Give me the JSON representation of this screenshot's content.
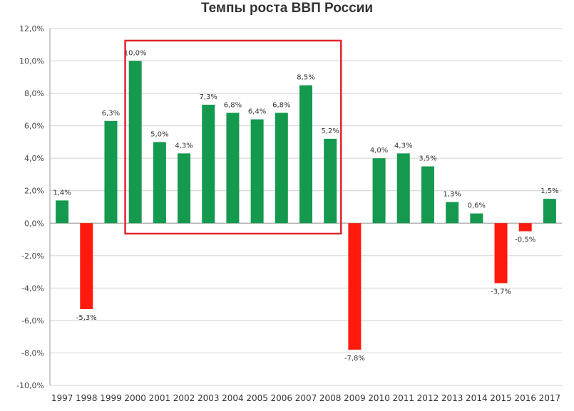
{
  "chart_data": {
    "type": "bar",
    "title": "Темпы роста ВВП России",
    "xlabel": "",
    "ylabel": "",
    "ylim": [
      -10,
      12
    ],
    "yticks": [
      "12,0%",
      "10,0%",
      "8,0%",
      "6,0%",
      "4,0%",
      "2,0%",
      "0,0%",
      "-2,0%",
      "-4,0%",
      "-6,0%",
      "-8,0%",
      "-10,0%"
    ],
    "grid": "horizontal",
    "legend": "none",
    "categories": [
      "1997",
      "1998",
      "1999",
      "2000",
      "2001",
      "2002",
      "2003",
      "2004",
      "2005",
      "2006",
      "2007",
      "2008",
      "2009",
      "2010",
      "2011",
      "2012",
      "2013",
      "2014",
      "2015",
      "2016",
      "2017"
    ],
    "values": [
      1.4,
      -5.3,
      6.3,
      10.0,
      5.0,
      4.3,
      7.3,
      6.8,
      6.4,
      6.8,
      8.5,
      5.2,
      -7.8,
      4.0,
      4.3,
      3.5,
      1.3,
      0.6,
      -3.7,
      -0.5,
      1.5
    ],
    "data_labels": [
      "1,4%",
      "-5,3%",
      "6,3%",
      "10,0%",
      "5,0%",
      "4,3%",
      "7,3%",
      "6,8%",
      "6,4%",
      "6,8%",
      "8,5%",
      "5,2%",
      "-7,8%",
      "4,0%",
      "4,3%",
      "3,5%",
      "1,3%",
      "0,6%",
      "-3,7%",
      "-0,5%",
      "1,5%"
    ],
    "colors": {
      "positive": "#14994f",
      "negative": "#ff1a0d",
      "highlight_box": "#e0252b",
      "grid": "#d0d0d0",
      "axis": "#999999"
    },
    "highlight_range": [
      "2000",
      "2008"
    ]
  }
}
